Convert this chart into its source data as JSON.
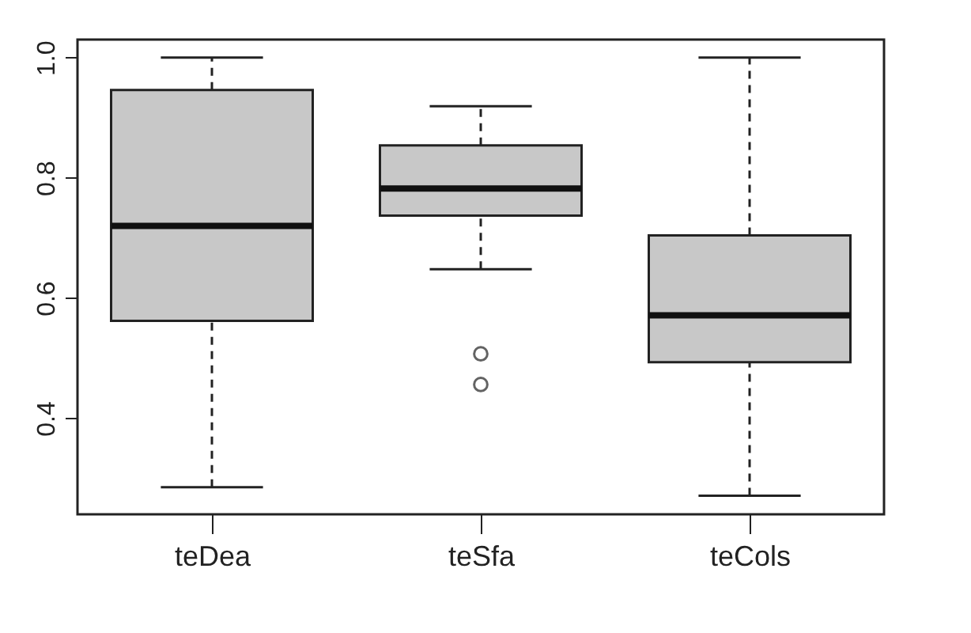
{
  "chart_data": {
    "type": "box",
    "categories": [
      "teDea",
      "teSfa",
      "teCols"
    ],
    "boxes": [
      {
        "low": 0.285,
        "q1": 0.562,
        "median": 0.72,
        "q3": 0.946,
        "high": 1.0
      },
      {
        "low": 0.648,
        "q1": 0.737,
        "median": 0.782,
        "q3": 0.854,
        "high": 0.919,
        "outliers": [
          0.507,
          0.456
        ]
      },
      {
        "low": 0.271,
        "q1": 0.493,
        "median": 0.571,
        "q3": 0.704,
        "high": 1.0
      }
    ],
    "color": "#c8c8c8",
    "ylim": [
      0.24,
      1.03
    ],
    "yticks": [
      {
        "value": 0.4,
        "label": "0.4"
      },
      {
        "value": 0.6,
        "label": "0.6"
      },
      {
        "value": 0.8,
        "label": "0.8"
      },
      {
        "value": 1.0,
        "label": "1.0"
      }
    ],
    "grid": false
  }
}
